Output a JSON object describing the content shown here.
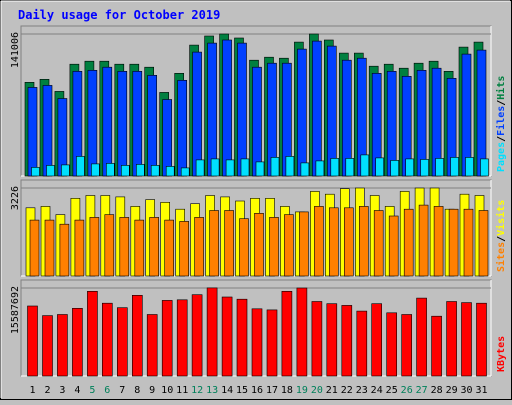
{
  "chart_data": {
    "type": "bar",
    "title": "Daily usage for October 2019",
    "categories": [
      "1",
      "2",
      "3",
      "4",
      "5",
      "6",
      "7",
      "8",
      "9",
      "10",
      "11",
      "12",
      "13",
      "14",
      "15",
      "16",
      "17",
      "18",
      "19",
      "20",
      "21",
      "22",
      "23",
      "24",
      "25",
      "26",
      "27",
      "28",
      "29",
      "30",
      "31"
    ],
    "weekend_days": [
      "5",
      "6",
      "12",
      "13",
      "19",
      "20",
      "26",
      "27"
    ],
    "panels": [
      {
        "name": "hits_files_pages",
        "ymax": 141006,
        "ymax_label": "141006",
        "legend": [
          "Pages",
          "/",
          "Files",
          "/",
          "Hits"
        ],
        "series": [
          {
            "name": "Hits",
            "color": "#008040",
            "values": [
              93000,
              96000,
              84000,
              111000,
              114000,
              114000,
              111000,
              111000,
              108000,
              83000,
              102000,
              130000,
              139000,
              141006,
              137000,
              115000,
              118000,
              117000,
              133000,
              141006,
              135000,
              122000,
              122000,
              109000,
              111000,
              107000,
              112000,
              114000,
              104000,
              128000,
              133000
            ]
          },
          {
            "name": "Files",
            "color": "#0040ff",
            "values": [
              88000,
              90000,
              77000,
              104000,
              105000,
              108000,
              104000,
              104000,
              100000,
              76000,
              95000,
              123000,
              132000,
              135000,
              132000,
              108000,
              112000,
              112000,
              126000,
              134000,
              129000,
              115000,
              117000,
              102000,
              104000,
              99000,
              105000,
              107000,
              97000,
              121000,
              125000
            ]
          },
          {
            "name": "Pages",
            "color": "#00e0ff",
            "values": [
              8500,
              10500,
              11000,
              19500,
              12000,
              12500,
              10500,
              11500,
              10500,
              9500,
              8000,
              16000,
              17000,
              16000,
              17000,
              14000,
              18500,
              19500,
              13000,
              15000,
              17500,
              17500,
              21000,
              18000,
              15500,
              17000,
              16500,
              17500,
              18500,
              18500,
              17000
            ]
          }
        ]
      },
      {
        "name": "visits_sites",
        "ymax": 3226,
        "ymax_label": "3226",
        "legend": [
          "Sites",
          "/",
          "Visits"
        ],
        "series": [
          {
            "name": "Visits",
            "color": "#ffff00",
            "values": [
              2500,
              2550,
              2250,
              2850,
              2950,
              2950,
              2900,
              2550,
              2800,
              2700,
              2450,
              2650,
              2950,
              2900,
              2750,
              2850,
              2850,
              2550,
              2350,
              3100,
              3000,
              3200,
              3226,
              2950,
              2550,
              3100,
              3226,
              3226,
              2450,
              3000,
              2950
            ]
          },
          {
            "name": "Sites",
            "color": "#ff8000",
            "values": [
              2050,
              2050,
              1900,
              2050,
              2150,
              2250,
              2150,
              2050,
              2150,
              2050,
              2000,
              2150,
              2400,
              2400,
              2100,
              2300,
              2150,
              2250,
              2350,
              2550,
              2500,
              2500,
              2550,
              2400,
              2200,
              2450,
              2600,
              2550,
              2450,
              2450,
              2400
            ]
          }
        ]
      },
      {
        "name": "kbytes",
        "ymax": 15587692,
        "ymax_label": "15587692",
        "legend": [
          "KBytes"
        ],
        "series": [
          {
            "name": "KBytes",
            "color": "#ff0000",
            "values": [
              12400000,
              10700000,
              10900000,
              12000000,
              15000000,
              12900000,
              12100000,
              14300000,
              10900000,
              13400000,
              13500000,
              14400000,
              15600000,
              14000000,
              13600000,
              11900000,
              11700000,
              15000000,
              15587692,
              13200000,
              12800000,
              12500000,
              11500000,
              12800000,
              11200000,
              10900000,
              13800000,
              10600000,
              13200000,
              13000000,
              12900000
            ]
          }
        ]
      }
    ]
  }
}
